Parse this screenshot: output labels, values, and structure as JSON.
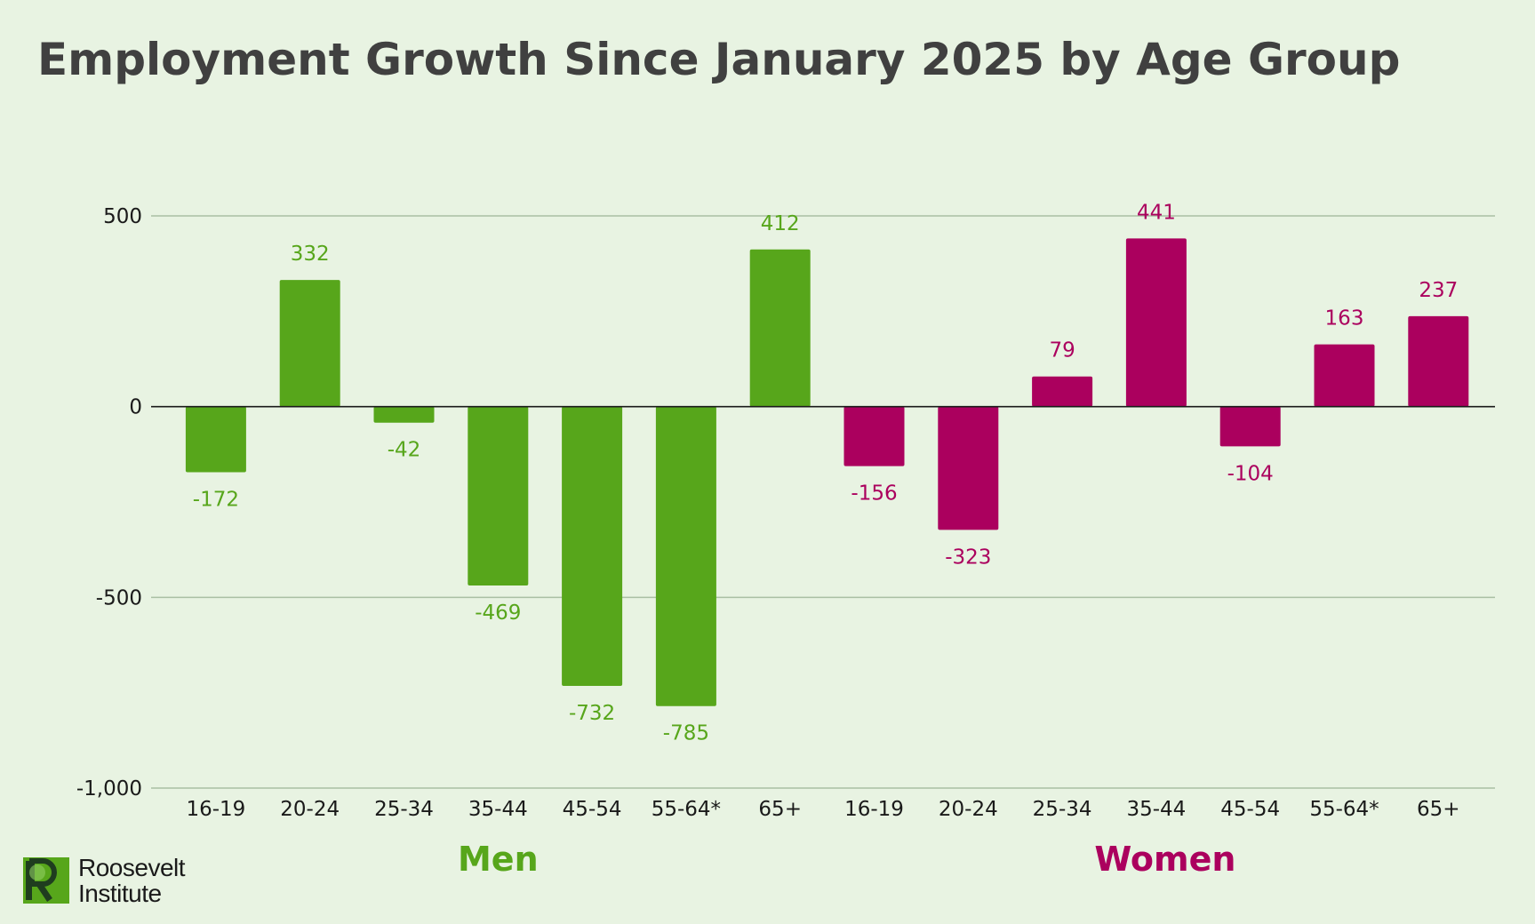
{
  "chart_data": {
    "type": "bar",
    "title": "Employment Growth Since January 2025 by Age Group",
    "ylim": [
      -1000,
      500
    ],
    "yticks": [
      500,
      0,
      -500,
      -1000
    ],
    "ytick_labels": [
      "500",
      "0",
      "-500",
      "-1,000"
    ],
    "grid": true,
    "groups": [
      {
        "name": "Men",
        "color": "#57a61b",
        "categories": [
          "16-19",
          "20-24",
          "25-34",
          "35-44",
          "45-54",
          "55-64*",
          "65+"
        ],
        "values": [
          -172,
          332,
          -42,
          -469,
          -732,
          -785,
          412
        ]
      },
      {
        "name": "Women",
        "color": "#ab005e",
        "categories": [
          "16-19",
          "20-24",
          "25-34",
          "35-44",
          "45-54",
          "55-64*",
          "65+"
        ],
        "values": [
          -156,
          -323,
          79,
          441,
          -104,
          163,
          237
        ]
      }
    ]
  },
  "logo": {
    "line1": "Roosevelt",
    "line2": "Institute"
  }
}
